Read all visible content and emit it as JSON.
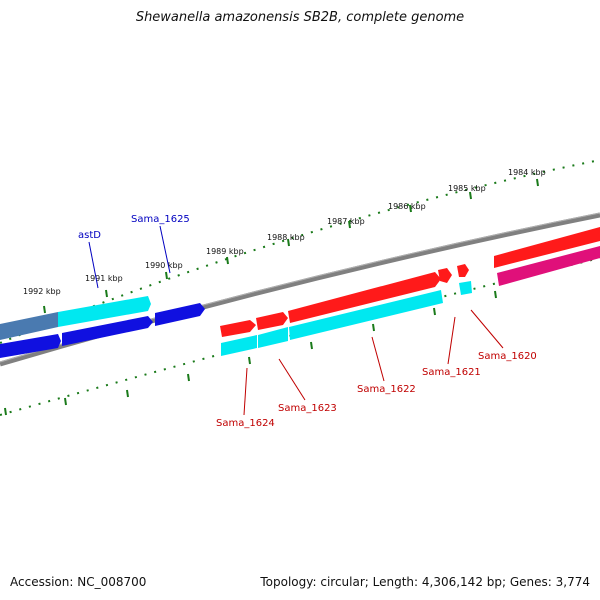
{
  "title": "Shewanella amazonensis SB2B, complete genome",
  "accession": "Accession: NC_008700",
  "summary": "Topology: circular; Length: 4,306,142 bp; Genes: 3,774",
  "colors": {
    "backbone": "#808080",
    "tick": "#1a7a1a",
    "red": "#ff1a1a",
    "cyan": "#00e8f0",
    "blue": "#1010e0",
    "magenta": "#e0107a",
    "steel": "#4a7ab0",
    "label_red": "#c00000",
    "label_blue": "#0000c0"
  },
  "scale_labels": [
    "1984 kbp",
    "1985 kbp",
    "1986 kbp",
    "1987 kbp",
    "1988 kbp",
    "1989 kbp",
    "1990 kbp",
    "1991 kbp",
    "1992 kbp"
  ],
  "gene_labels": [
    {
      "name": "Sama_1620",
      "color": "red"
    },
    {
      "name": "Sama_1621",
      "color": "red"
    },
    {
      "name": "Sama_1622",
      "color": "red"
    },
    {
      "name": "Sama_1623",
      "color": "red"
    },
    {
      "name": "Sama_1624",
      "color": "red"
    },
    {
      "name": "Sama_1625",
      "color": "blue"
    },
    {
      "name": "astD",
      "color": "blue"
    }
  ]
}
